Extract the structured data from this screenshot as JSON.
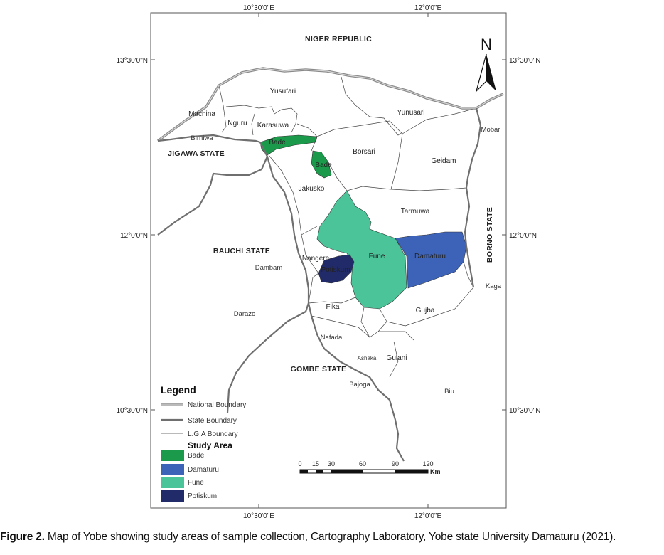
{
  "coordinates": {
    "top_left": "10°30'0\"E",
    "top_right": "12°0'0\"E",
    "bottom_left": "10°30'0\"E",
    "bottom_right": "12°0'0\"E",
    "left_top": "13°30'0\"N",
    "left_mid": "12°0'0\"N",
    "left_bottom": "10°30'0\"N",
    "right_top": "13°30'0\"N",
    "right_mid": "12°0'0\"N",
    "right_bottom": "10°30'0\"N"
  },
  "regions": {
    "niger": "NIGER REPUBLIC",
    "jigawa": "JIGAWA STATE",
    "bauchi": "BAUCHI STATE",
    "gombe": "GOMBE STATE",
    "borno": "BORNO STATE"
  },
  "lgas": {
    "yusufari": "Yusufari",
    "yunusari": "Yunusari",
    "machina": "Machina",
    "nguru": "Nguru",
    "karasuwa": "Karasuwa",
    "bade_1": "Bade",
    "bade_2": "Bade",
    "borsari": "Borsari",
    "geidam": "Geidam",
    "jakusko": "Jakusko",
    "tarmuwa": "Tarmuwa",
    "nangere": "Nangere",
    "potiskum": "Potiskum",
    "fune": "Fune",
    "damaturu": "Damaturu",
    "fika": "Fika",
    "gujba": "Gujba",
    "gulani": "Gulani"
  },
  "towns": {
    "birniwa": "Birniwa",
    "mobar": "Mobar",
    "dambam": "Dambam",
    "kaga": "Kaga",
    "darazo": "Darazo",
    "nafada": "Nafada",
    "ashaka": "Ashaka",
    "bajoga": "Bajoga",
    "biu": "Biu"
  },
  "north_arrow": "N",
  "legend": {
    "title": "Legend",
    "national": "National Boundary",
    "state": "State Boundary",
    "lga": "L.G.A Boundary",
    "study_area": "Study Area",
    "items": [
      {
        "label": "Bade",
        "color": "#1a9a4a"
      },
      {
        "label": "Damaturu",
        "color": "#3d63b8"
      },
      {
        "label": "Fune",
        "color": "#4cc49a"
      },
      {
        "label": "Potiskum",
        "color": "#212b6a"
      }
    ]
  },
  "scale": {
    "ticks": [
      "0",
      "15",
      "30",
      "60",
      "90",
      "120"
    ],
    "unit": "Km"
  },
  "caption": {
    "label": "Figure 2.",
    "text": " Map of Yobe showing study areas of sample collection, Cartography Laboratory, Yobe state University Damaturu (2021)."
  }
}
